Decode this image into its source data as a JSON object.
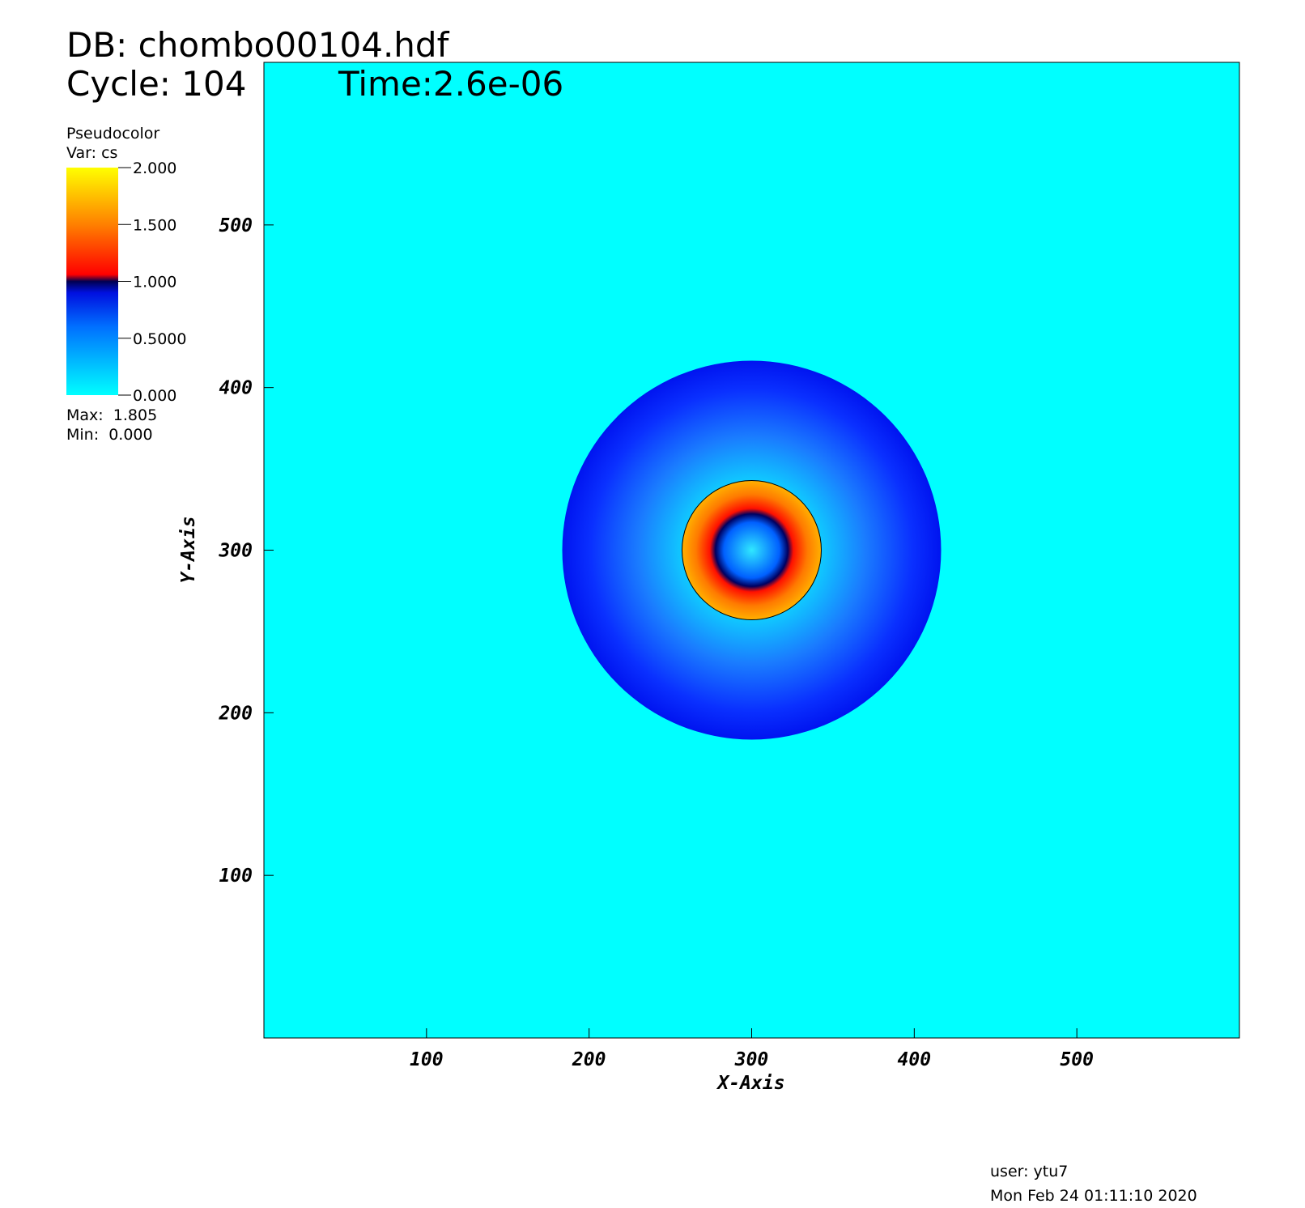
{
  "header": {
    "db": "DB: chombo00104.hdf",
    "cycle": "Cycle: 104",
    "time": "Time:2.6e-06"
  },
  "legend": {
    "plot": "Pseudocolor",
    "var": "Var: cs",
    "clim": [
      0,
      2
    ],
    "ticks": [
      {
        "value": 2,
        "label": "2.000"
      },
      {
        "value": 1.5,
        "label": "1.500"
      },
      {
        "value": 1,
        "label": "1.000"
      },
      {
        "value": 0.5,
        "label": "0.5000"
      },
      {
        "value": 0,
        "label": "0.000"
      }
    ],
    "max": "Max:  1.805",
    "min": "Min:  0.000"
  },
  "chart_data": {
    "type": "pseudocolor",
    "xlabel": "X-Axis",
    "ylabel": "Y-Axis",
    "xlim": [
      0,
      600
    ],
    "ylim": [
      0,
      600
    ],
    "xticks": [
      100,
      200,
      300,
      400,
      500
    ],
    "yticks": [
      100,
      200,
      300,
      400,
      500
    ]
  },
  "footer": {
    "user": "user: ytu7",
    "date": "Mon Feb 24 01:11:10 2020"
  }
}
